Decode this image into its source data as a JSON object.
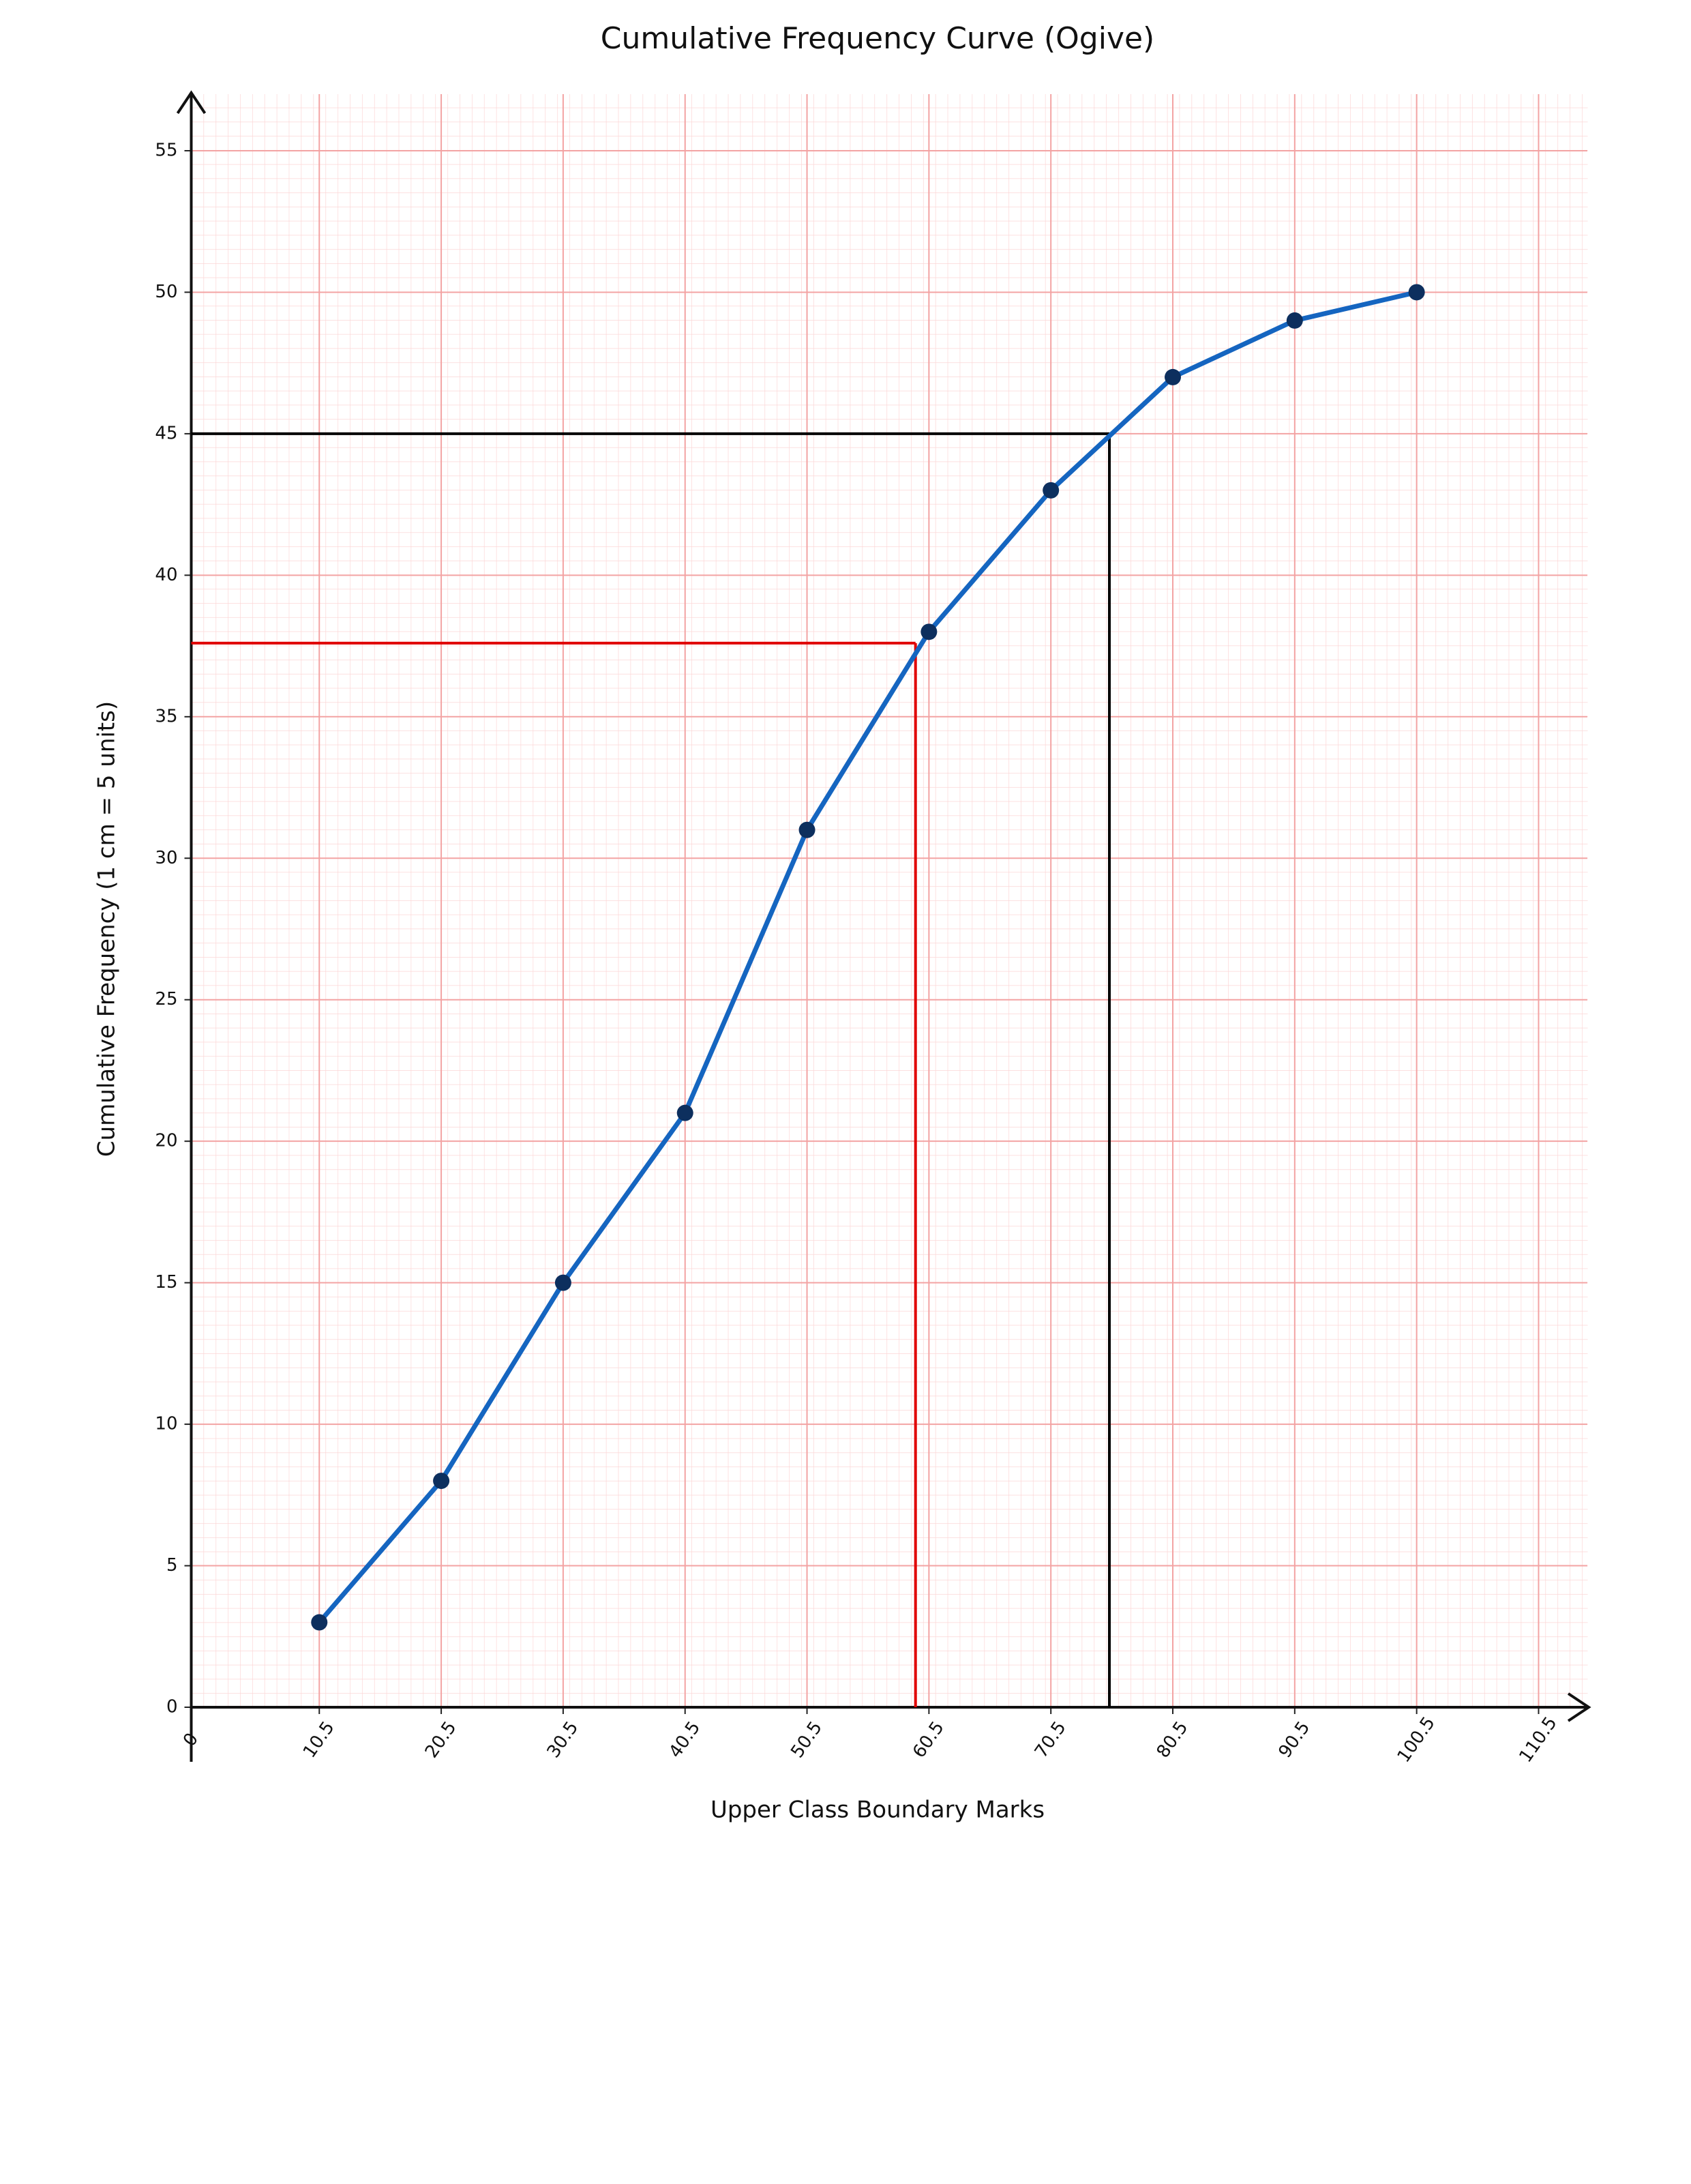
{
  "chart_data": {
    "type": "line",
    "title": "Cumulative Frequency Curve (Ogive)",
    "x_label": "Upper Class Boundary Marks",
    "y_label": "Cumulative Frequency (1 cm = 5 units)",
    "x": [
      10.5,
      20.5,
      30.5,
      40.5,
      50.5,
      60.5,
      70.5,
      80.5,
      90.5,
      100.5
    ],
    "values": [
      3,
      8,
      15,
      21,
      31,
      38,
      43,
      47,
      49,
      50
    ],
    "color": "#1565c0",
    "marker_color": "#0d2f5e",
    "xlim": [
      0,
      114.5
    ],
    "ylim": [
      0,
      57
    ],
    "xticks": [
      0,
      10.5,
      20.5,
      30.5,
      40.5,
      50.5,
      60.5,
      70.5,
      80.5,
      90.5,
      100.5,
      110.5
    ],
    "yticks": [
      0,
      5,
      10,
      15,
      20,
      25,
      30,
      35,
      40,
      45,
      50,
      55
    ],
    "grid": true,
    "reference_lines": [
      {
        "x": 59.4,
        "y": 37.6,
        "color": "#e00000"
      },
      {
        "x": 75.3,
        "y": 45,
        "color": "#000000"
      }
    ]
  }
}
